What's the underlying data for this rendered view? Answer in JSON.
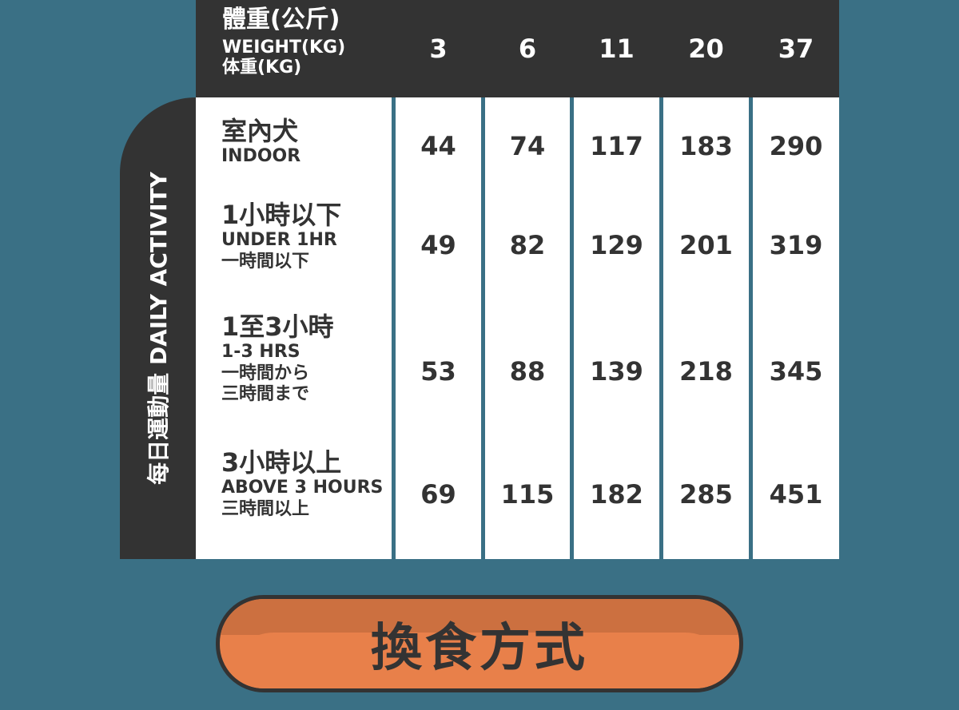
{
  "header": {
    "label_zh": "體重(公斤)",
    "label_en": "WEIGHT(KG)",
    "label_jp": "体重(KG)",
    "weights": [
      "3",
      "6",
      "11",
      "20",
      "37"
    ]
  },
  "side_label": "每日運動量 DAILY ACTIVITY",
  "rows": [
    {
      "zh": "室內犬",
      "sub1": "INDOOR",
      "sub2": "",
      "sub3": "",
      "values": [
        "44",
        "74",
        "117",
        "183",
        "290"
      ]
    },
    {
      "zh": "1小時以下",
      "sub1": "UNDER 1HR",
      "sub2": "一時間以下",
      "sub3": "",
      "values": [
        "49",
        "82",
        "129",
        "201",
        "319"
      ]
    },
    {
      "zh": "1至3小時",
      "sub1": "1-3 HRS",
      "sub2": "一時間から",
      "sub3": "三時間まで",
      "values": [
        "53",
        "88",
        "139",
        "218",
        "345"
      ]
    },
    {
      "zh": "3小時以上",
      "sub1": "ABOVE 3 HOURS",
      "sub2": "三時間以上",
      "sub3": "",
      "values": [
        "69",
        "115",
        "182",
        "285",
        "451"
      ]
    }
  ],
  "button": {
    "label": "換食方式"
  },
  "colors": {
    "background": "#3a7085",
    "dark": "#333333",
    "button_orange": "#e8804a",
    "button_shade": "#cc7040"
  }
}
